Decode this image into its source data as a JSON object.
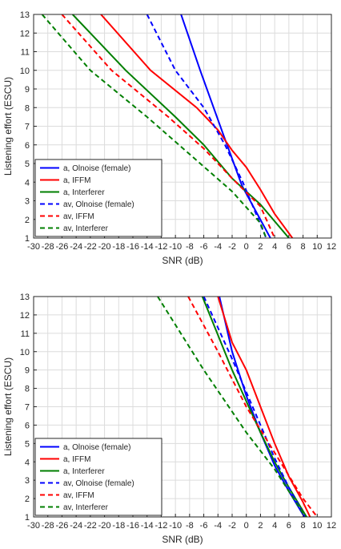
{
  "chart_data": [
    {
      "type": "line",
      "xlabel": "SNR (dB)",
      "ylabel": "Listening effort (ESCU)",
      "xlim": [
        -30,
        12
      ],
      "ylim": [
        1,
        13
      ],
      "xticks": [
        -30,
        -28,
        -26,
        -24,
        -22,
        -20,
        -18,
        -16,
        -14,
        -12,
        -10,
        -8,
        -6,
        -4,
        -2,
        0,
        2,
        4,
        6,
        8,
        10,
        12
      ],
      "yticks": [
        1,
        2,
        3,
        4,
        5,
        6,
        7,
        8,
        9,
        10,
        11,
        12,
        13
      ],
      "grid": true,
      "legend_position": "bottom-left",
      "series": [
        {
          "name": "a, Olnoise (female)",
          "color": "#0000ff",
          "dash": "solid",
          "points": [
            [
              -9.2,
              13
            ],
            [
              -6.5,
              10
            ],
            [
              -3.2,
              6.5
            ],
            [
              -0.6,
              3.8
            ],
            [
              3.4,
              1
            ]
          ]
        },
        {
          "name": "a, IFFM",
          "color": "#ff0000",
          "dash": "solid",
          "points": [
            [
              -20.5,
              13
            ],
            [
              -13.5,
              10
            ],
            [
              -7,
              8
            ],
            [
              -4,
              6.8
            ],
            [
              -2,
              5.7
            ],
            [
              0,
              4.8
            ],
            [
              2,
              3.6
            ],
            [
              4,
              2.3
            ],
            [
              6.5,
              1
            ]
          ]
        },
        {
          "name": "a, Interferer",
          "color": "#007f00",
          "dash": "solid",
          "points": [
            [
              -24.5,
              13
            ],
            [
              -17,
              10
            ],
            [
              -10,
              7.5
            ],
            [
              -6,
              6
            ],
            [
              -2,
              4.2
            ],
            [
              2,
              2.8
            ],
            [
              6,
              1
            ]
          ]
        },
        {
          "name": "av, Olnoise (female)",
          "color": "#0000ff",
          "dash": "dashed",
          "points": [
            [
              -14,
              13
            ],
            [
              -10,
              10
            ],
            [
              -6,
              8
            ],
            [
              -3,
              6
            ],
            [
              -0.5,
              4
            ],
            [
              2.8,
              1
            ]
          ]
        },
        {
          "name": "av, IFFM",
          "color": "#ff0000",
          "dash": "dashed",
          "points": [
            [
              -26,
              13
            ],
            [
              -19,
              10
            ],
            [
              -11,
              7.5
            ],
            [
              -6,
              5.8
            ],
            [
              -2,
              4.2
            ],
            [
              2,
              2.7
            ],
            [
              4,
              1
            ]
          ]
        },
        {
          "name": "av, Interferer",
          "color": "#007f00",
          "dash": "dashed",
          "points": [
            [
              -28.8,
              13
            ],
            [
              -22,
              10
            ],
            [
              -14,
              7.5
            ],
            [
              -8,
              5.5
            ],
            [
              -2,
              3.5
            ],
            [
              2,
              1.8
            ],
            [
              2.8,
              1
            ]
          ]
        }
      ]
    },
    {
      "type": "line",
      "xlabel": "SNR (dB)",
      "ylabel": "Listening effort (ESCU)",
      "xlim": [
        -30,
        12
      ],
      "ylim": [
        1,
        13
      ],
      "xticks": [
        -30,
        -28,
        -26,
        -24,
        -22,
        -20,
        -18,
        -16,
        -14,
        -12,
        -10,
        -8,
        -6,
        -4,
        -2,
        0,
        2,
        4,
        6,
        8,
        10,
        12
      ],
      "yticks": [
        1,
        2,
        3,
        4,
        5,
        6,
        7,
        8,
        9,
        10,
        11,
        12,
        13
      ],
      "grid": true,
      "legend_position": "bottom-left",
      "series": [
        {
          "name": "a, Olnoise (female)",
          "color": "#0000ff",
          "dash": "solid",
          "points": [
            [
              -3.8,
              13
            ],
            [
              -2,
              10
            ],
            [
              0,
              7.6
            ],
            [
              2,
              5.6
            ],
            [
              4,
              3.8
            ],
            [
              6,
              2.4
            ],
            [
              8.2,
              1
            ]
          ]
        },
        {
          "name": "a, IFFM",
          "color": "#ff0000",
          "dash": "solid",
          "points": [
            [
              -4,
              13
            ],
            [
              -2,
              10.5
            ],
            [
              0,
              9
            ],
            [
              2,
              7
            ],
            [
              4,
              5
            ],
            [
              6,
              3.2
            ],
            [
              8,
              1.8
            ],
            [
              9,
              1
            ]
          ]
        },
        {
          "name": "a, Interferer",
          "color": "#007f00",
          "dash": "solid",
          "points": [
            [
              -6.2,
              13
            ],
            [
              -2,
              9
            ],
            [
              2,
              5.6
            ],
            [
              4,
              4
            ],
            [
              6,
              2.6
            ],
            [
              8.5,
              1
            ]
          ]
        },
        {
          "name": "av, Olnoise (female)",
          "color": "#0000ff",
          "dash": "dashed",
          "points": [
            [
              -6,
              13
            ],
            [
              -2,
              9.6
            ],
            [
              0,
              7.8
            ],
            [
              2,
              6
            ],
            [
              4,
              4.2
            ],
            [
              6,
              2.6
            ],
            [
              8,
              1.2
            ],
            [
              8.3,
              1
            ]
          ]
        },
        {
          "name": "av, IFFM",
          "color": "#ff0000",
          "dash": "dashed",
          "points": [
            [
              -8.2,
              13
            ],
            [
              -4,
              10
            ],
            [
              0,
              7
            ],
            [
              4,
              4.5
            ],
            [
              8,
              2
            ],
            [
              10,
              1
            ]
          ]
        },
        {
          "name": "av, Interferer",
          "color": "#007f00",
          "dash": "dashed",
          "points": [
            [
              -12.5,
              13
            ],
            [
              -6,
              9
            ],
            [
              0,
              5.6
            ],
            [
              4,
              3.6
            ],
            [
              8,
              1.2
            ],
            [
              8.5,
              1
            ]
          ]
        }
      ]
    }
  ]
}
